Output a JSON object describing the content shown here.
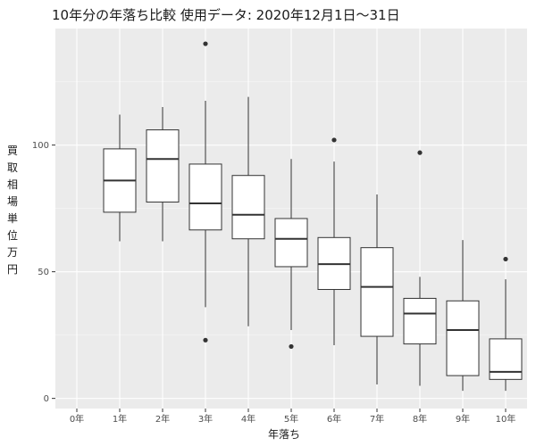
{
  "chart_data": {
    "type": "boxplot",
    "title": "10年分の年落ち比較 使用データ: 2020年12月1日～31日",
    "xlabel": "年落ち",
    "ylabel": "買取相場 単位 万円",
    "categories": [
      "0年",
      "1年",
      "2年",
      "3年",
      "4年",
      "5年",
      "6年",
      "7年",
      "8年",
      "9年",
      "10年"
    ],
    "ylim": [
      -4,
      146
    ],
    "yticks": [
      0,
      50,
      100
    ],
    "grid": true,
    "boxes": [
      null,
      {
        "min": 62,
        "q1": 73.5,
        "median": 86,
        "q3": 98.5,
        "max": 112,
        "outliers": []
      },
      {
        "min": 62,
        "q1": 77.5,
        "median": 94.5,
        "q3": 106,
        "max": 115,
        "outliers": []
      },
      {
        "min": 36,
        "q1": 66.5,
        "median": 77,
        "q3": 92.5,
        "max": 117.5,
        "outliers": [
          140,
          23
        ]
      },
      {
        "min": 28.5,
        "q1": 63,
        "median": 72.5,
        "q3": 88,
        "max": 119,
        "outliers": []
      },
      {
        "min": 27,
        "q1": 52,
        "median": 63,
        "q3": 71,
        "max": 94.5,
        "outliers": [
          20.5
        ]
      },
      {
        "min": 21,
        "q1": 43,
        "median": 53,
        "q3": 63.5,
        "max": 93.5,
        "outliers": [
          102
        ]
      },
      {
        "min": 5.5,
        "q1": 24.5,
        "median": 44,
        "q3": 59.5,
        "max": 80.5,
        "outliers": []
      },
      {
        "min": 5,
        "q1": 21.5,
        "median": 33.5,
        "q3": 39.5,
        "max": 48,
        "outliers": [
          97
        ]
      },
      {
        "min": 3,
        "q1": 9,
        "median": 27,
        "q3": 38.5,
        "max": 62.5,
        "outliers": []
      },
      {
        "min": 3,
        "q1": 7.5,
        "median": 10.5,
        "q3": 23.5,
        "max": 47,
        "outliers": [
          55
        ]
      }
    ],
    "colors": {
      "panel": "#ebebeb",
      "grid_major": "#ffffff",
      "grid_minor": "#f5f5f5",
      "box_fill": "#ffffff",
      "box_line": "#333333",
      "tick_text": "#4d4d4d",
      "text": "#1a1a1a"
    }
  }
}
